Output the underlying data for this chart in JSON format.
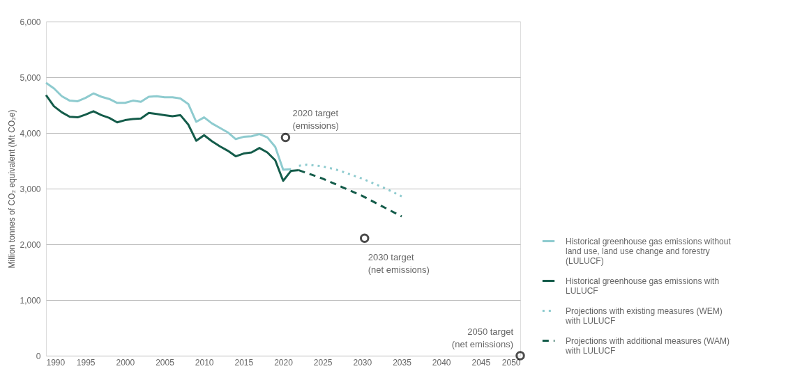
{
  "chart_data": {
    "type": "line",
    "ylabel": "Million tonnes of CO₂ equivalent (Mt CO₂e)",
    "xlim": [
      1990,
      2050
    ],
    "xticks": [
      1990,
      1995,
      2000,
      2005,
      2010,
      2015,
      2020,
      2025,
      2030,
      2035,
      2040,
      2045,
      2050
    ],
    "ylim": [
      0,
      6000
    ],
    "yticks": [
      {
        "value": 0,
        "label": "0"
      },
      {
        "value": 1000,
        "label": "1,000"
      },
      {
        "value": 2000,
        "label": "2,000"
      },
      {
        "value": 3000,
        "label": "3,000"
      },
      {
        "value": 4000,
        "label": "4,000"
      },
      {
        "value": 5000,
        "label": "5,000"
      },
      {
        "value": 6000,
        "label": "6,000"
      }
    ],
    "grid": "y",
    "legend": "bottom right",
    "marker": "none",
    "series": [
      {
        "name": "Historical greenhouse gas emissions without land use, land use change and forestry (LULUCF)",
        "color": "#8ecbcf",
        "line_style": "solid",
        "x": [
          1990,
          1991,
          1992,
          1993,
          1994,
          1995,
          1996,
          1997,
          1998,
          1999,
          2000,
          2001,
          2002,
          2003,
          2004,
          2005,
          2006,
          2007,
          2008,
          2009,
          2010,
          2011,
          2012,
          2013,
          2014,
          2015,
          2016,
          2017,
          2018,
          2019,
          2020,
          2021
        ],
        "values": [
          4900,
          4800,
          4660,
          4580,
          4570,
          4630,
          4710,
          4650,
          4610,
          4540,
          4540,
          4580,
          4560,
          4650,
          4660,
          4640,
          4640,
          4620,
          4520,
          4200,
          4280,
          4170,
          4090,
          4010,
          3890,
          3930,
          3940,
          3980,
          3920,
          3750,
          3340,
          3350
        ]
      },
      {
        "name": "Historical greenhouse gas emissions with LULUCF",
        "color": "#145c4a",
        "line_style": "solid",
        "x": [
          1990,
          1991,
          1992,
          1993,
          1994,
          1995,
          1996,
          1997,
          1998,
          1999,
          2000,
          2001,
          2002,
          2003,
          2004,
          2005,
          2006,
          2007,
          2008,
          2009,
          2010,
          2011,
          2012,
          2013,
          2014,
          2015,
          2016,
          2017,
          2018,
          2019,
          2020,
          2021,
          2022
        ],
        "values": [
          4680,
          4480,
          4370,
          4290,
          4280,
          4330,
          4390,
          4320,
          4270,
          4190,
          4230,
          4250,
          4260,
          4360,
          4340,
          4320,
          4300,
          4320,
          4150,
          3860,
          3960,
          3850,
          3760,
          3680,
          3580,
          3630,
          3650,
          3730,
          3650,
          3510,
          3140,
          3320,
          3330
        ]
      },
      {
        "name": "Projections with existing measures (WEM) with LULUCF",
        "color": "#8ecbcf",
        "line_style": "dotted",
        "x": [
          2022,
          2023,
          2025,
          2027,
          2030,
          2033,
          2035
        ],
        "values": [
          3410,
          3430,
          3400,
          3330,
          3180,
          3000,
          2860
        ]
      },
      {
        "name": "Projections with additional measures (WAM) with LULUCF",
        "color": "#145c4a",
        "line_style": "dashed",
        "x": [
          2022,
          2025,
          2030,
          2035
        ],
        "values": [
          3330,
          3180,
          2870,
          2500
        ]
      },
      {
        "type": "scatter",
        "color": "#000000",
        "marker": "circle",
        "x": [
          2020.3,
          2030.3,
          2050
        ],
        "values": [
          3920,
          2110,
          0
        ]
      }
    ],
    "annotations": [
      {
        "text": "2020 target\n(emissions)",
        "x": 2020.3,
        "y": 3920
      },
      {
        "text": "2030 target\n(net emissions)",
        "x": 2030.3,
        "y": 2110
      },
      {
        "text": "2050 target\n(net emissions)",
        "x": 2050,
        "y": 0
      }
    ]
  }
}
